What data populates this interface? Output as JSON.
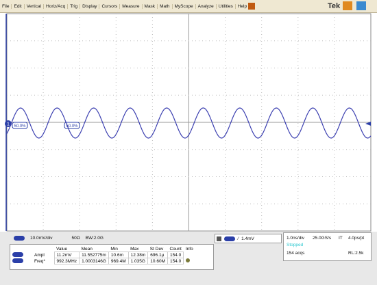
{
  "menu": {
    "items": [
      "File",
      "Edit",
      "Vertical",
      "Horiz/Acq",
      "Trig",
      "Display",
      "Cursors",
      "Measure",
      "Mask",
      "Math",
      "MyScope",
      "Analyze",
      "Utilities",
      "Help"
    ],
    "brand": "Tek"
  },
  "screen": {
    "channel_marker": "1",
    "ref_labels": [
      "50.0%",
      "50.0%"
    ]
  },
  "channel": {
    "scale": "10.0mV/div",
    "impedance": "50Ω",
    "bandwidth": "BW:2.0G"
  },
  "trigger": {
    "level": "1.4mV"
  },
  "horizontal": {
    "scale": "1.0ns/div",
    "sample_rate": "25.0GS/s",
    "mode": "IT",
    "resolution": "4.0ps/pt",
    "status": "Stopped",
    "acqs": "154 acqs",
    "record_length": "RL:2.5k"
  },
  "measurements": {
    "headers": [
      "Value",
      "Mean",
      "Min",
      "Max",
      "St Dev",
      "Count",
      "Info"
    ],
    "rows": [
      {
        "name": "Ampl",
        "cells": [
          "11.2mV",
          "11.552775m",
          "10.6m",
          "12.38m",
          "696.1µ",
          "154.0"
        ]
      },
      {
        "name": "Freq*",
        "cells": [
          "992.3MHz",
          "1.0003146G",
          "969.4M",
          "1.035G",
          "10.60M",
          "154.0"
        ]
      }
    ]
  }
}
